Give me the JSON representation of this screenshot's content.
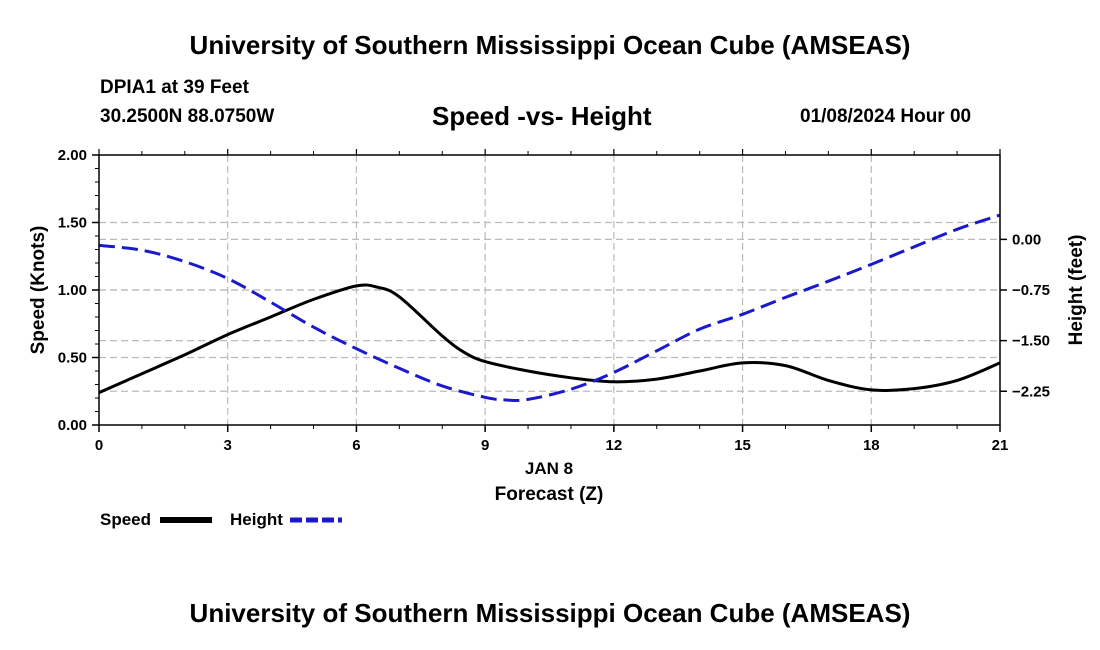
{
  "header": {
    "title": "University of Southern Mississippi Ocean Cube (AMSEAS)",
    "station": "DPIA1 at 39 Feet",
    "coordinates": "30.2500N  88.0750W",
    "subtitle": "Speed -vs- Height",
    "datetime": "01/08/2024 Hour 00"
  },
  "footer": {
    "title": "University of Southern Mississippi Ocean Cube (AMSEAS)"
  },
  "legend": {
    "speed_label": "Speed",
    "height_label": "Height"
  },
  "chart_data": {
    "type": "line",
    "title": "Speed -vs- Height",
    "xlabel": "Forecast (Z)",
    "xdate_label": "JAN 8",
    "ylabel": "Speed (Knots)",
    "y2label": "Height (feet)",
    "xlim": [
      0,
      21
    ],
    "ylim": [
      0,
      2.0
    ],
    "y2lim": [
      -2.75,
      1.25
    ],
    "x_ticks": [
      0,
      3,
      6,
      9,
      12,
      15,
      18,
      21
    ],
    "x_tick_labels": [
      "0",
      "3",
      "6",
      "9",
      "12",
      "15",
      "18",
      "21"
    ],
    "y_ticks": [
      0,
      0.5,
      1.0,
      1.5,
      2.0
    ],
    "y_tick_labels": [
      "0.00",
      "0.50",
      "1.00",
      "1.50",
      "2.00"
    ],
    "y2_ticks": [
      0,
      -0.75,
      -1.5,
      -2.25
    ],
    "y2_tick_labels": [
      "0.00",
      "−0.75",
      "−1.50",
      "−2.25"
    ],
    "grid": true,
    "series": [
      {
        "name": "Speed",
        "axis": "left",
        "color": "#000000",
        "dashed": false,
        "x": [
          0,
          1,
          2,
          3,
          4,
          5,
          6,
          6.5,
          7,
          8,
          8.5,
          9,
          10,
          11,
          12,
          13,
          14,
          15,
          16,
          17,
          18,
          19,
          20,
          21
        ],
        "values": [
          0.24,
          0.38,
          0.52,
          0.67,
          0.8,
          0.93,
          1.03,
          1.02,
          0.95,
          0.66,
          0.54,
          0.47,
          0.4,
          0.35,
          0.32,
          0.34,
          0.4,
          0.46,
          0.44,
          0.33,
          0.26,
          0.27,
          0.33,
          0.46
        ]
      },
      {
        "name": "Height",
        "axis": "right",
        "color": "#1a1acc",
        "dashed": true,
        "x": [
          0,
          1,
          2,
          3,
          4,
          5,
          6,
          7,
          8,
          9,
          9.5,
          10,
          11,
          12,
          13,
          14,
          15,
          16,
          17,
          18,
          19,
          20,
          21
        ],
        "values": [
          -0.09,
          -0.16,
          -0.33,
          -0.58,
          -0.93,
          -1.3,
          -1.62,
          -1.91,
          -2.17,
          -2.34,
          -2.38,
          -2.37,
          -2.22,
          -1.97,
          -1.65,
          -1.33,
          -1.11,
          -0.86,
          -0.62,
          -0.37,
          -0.11,
          0.15,
          0.36
        ]
      }
    ]
  }
}
